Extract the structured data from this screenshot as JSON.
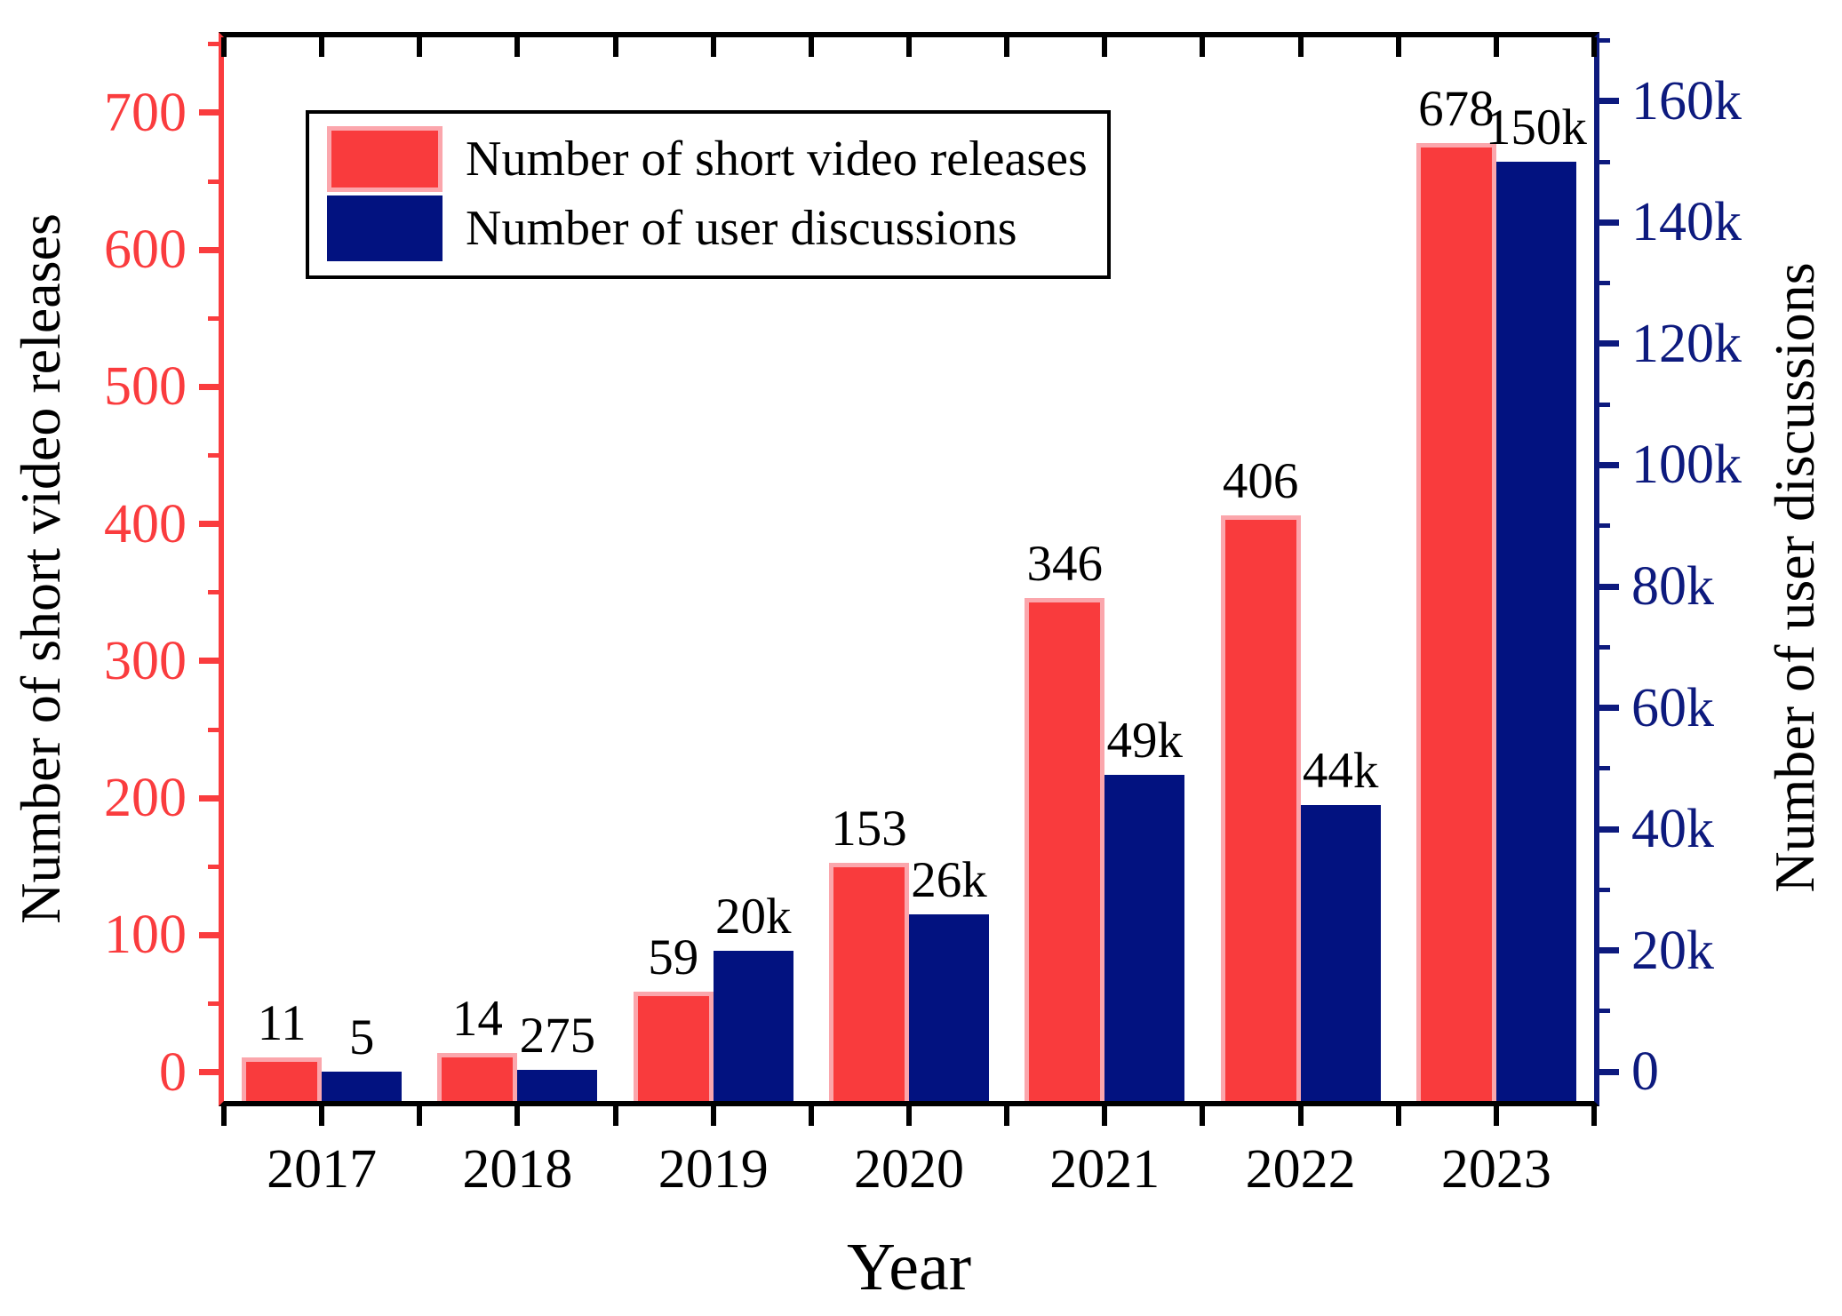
{
  "colors": {
    "red_fill": "#F93B3D",
    "red_edge": "#FBA6AC",
    "navy_fill": "#021280",
    "axis_red": "#FA3C3E",
    "axis_navy": "#0D1A7E",
    "frame_black": "#000000"
  },
  "legend": {
    "items": [
      {
        "label": "Number of short video releases",
        "color_key": "red"
      },
      {
        "label": "Number of user discussions",
        "color_key": "navy"
      }
    ]
  },
  "axes": {
    "left": {
      "title": "Number of short video releases",
      "ylim": [
        -21,
        755
      ],
      "minor_step": 50,
      "major_ticks": [
        {
          "v": 0,
          "label": "0"
        },
        {
          "v": 100,
          "label": "100"
        },
        {
          "v": 200,
          "label": "200"
        },
        {
          "v": 300,
          "label": "300"
        },
        {
          "v": 400,
          "label": "400"
        },
        {
          "v": 500,
          "label": "500"
        },
        {
          "v": 600,
          "label": "600"
        },
        {
          "v": 700,
          "label": "700"
        }
      ]
    },
    "right": {
      "title": "Number of user discussions",
      "ylim": [
        -4800,
        170500
      ],
      "minor_step": 10000,
      "major_ticks": [
        {
          "v": 0,
          "label": "0"
        },
        {
          "v": 20000,
          "label": "20k"
        },
        {
          "v": 40000,
          "label": "40k"
        },
        {
          "v": 60000,
          "label": "60k"
        },
        {
          "v": 80000,
          "label": "80k"
        },
        {
          "v": 100000,
          "label": "100k"
        },
        {
          "v": 120000,
          "label": "120k"
        },
        {
          "v": 140000,
          "label": "140k"
        },
        {
          "v": 160000,
          "label": "160k"
        }
      ]
    },
    "bottom": {
      "title": "Year"
    }
  },
  "chart_data": {
    "type": "bar",
    "title": "",
    "xlabel": "Year",
    "ylabel_left": "Number of short video releases",
    "ylabel_right": "Number of user discussions",
    "categories": [
      "2017",
      "2018",
      "2019",
      "2020",
      "2021",
      "2022",
      "2023"
    ],
    "series": [
      {
        "name": "Number of short video releases",
        "axis": "left",
        "color_key": "red",
        "values": [
          11,
          14,
          59,
          153,
          346,
          406,
          678
        ],
        "labels": [
          "11",
          "14",
          "59",
          "153",
          "346",
          "406",
          "678"
        ]
      },
      {
        "name": "Number of user discussions",
        "axis": "right",
        "color_key": "navy",
        "values": [
          5,
          275,
          20000,
          26000,
          49000,
          44000,
          150000
        ],
        "labels": [
          "5",
          "275",
          "20k",
          "26k",
          "49k",
          "44k",
          "150k"
        ]
      }
    ],
    "ylim_left": [
      -21,
      755
    ],
    "ylim_right": [
      -4800,
      170500
    ],
    "grid": false,
    "legend_position": "top-left"
  }
}
